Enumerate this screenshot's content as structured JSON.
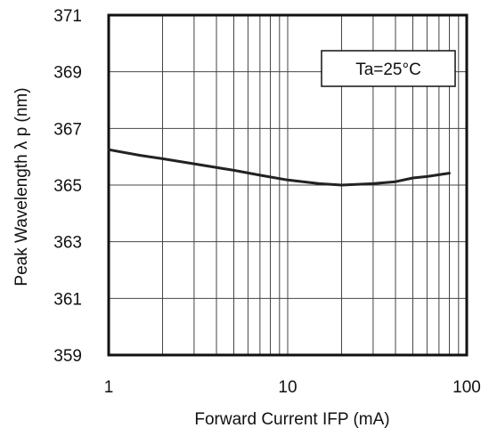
{
  "chart_data": {
    "type": "line",
    "title": "",
    "xlabel": "Forward Current  IFP (mA)",
    "ylabel": "Peak Wavelength  λ p (nm)",
    "xscale": "log",
    "xlim": [
      1,
      100
    ],
    "ylim": [
      359,
      371
    ],
    "x_ticks": [
      1,
      10,
      100
    ],
    "x_tick_labels": [
      "1",
      "10",
      "100"
    ],
    "y_ticks": [
      359,
      361,
      363,
      365,
      367,
      369,
      371
    ],
    "y_tick_labels": [
      "359",
      "361",
      "363",
      "365",
      "367",
      "369",
      "371"
    ],
    "grid": true,
    "annotation": "Ta=25°C",
    "annotation_position": "top-right",
    "series": [
      {
        "x": [
          1,
          1.5,
          2,
          3,
          5,
          7,
          10,
          15,
          20,
          30,
          40,
          50,
          60,
          80
        ],
        "y": [
          366.25,
          366.05,
          365.93,
          365.75,
          365.52,
          365.35,
          365.18,
          365.05,
          365.0,
          365.05,
          365.12,
          365.25,
          365.3,
          365.42
        ]
      }
    ]
  }
}
